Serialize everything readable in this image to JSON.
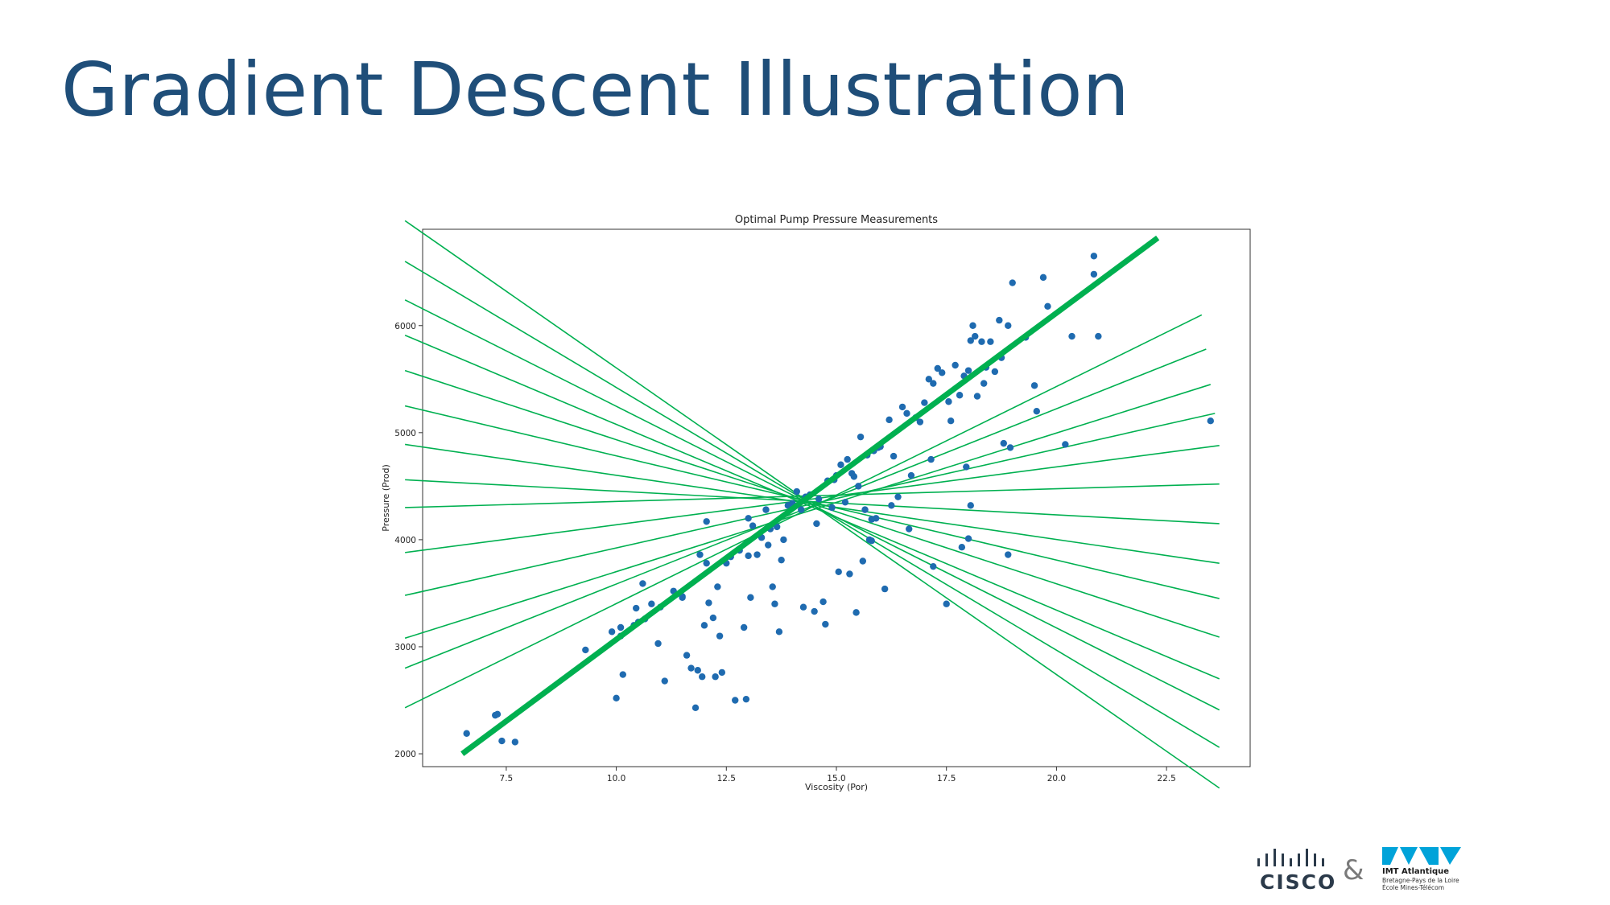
{
  "slide": {
    "title": "Gradient Descent Illustration"
  },
  "logos": {
    "cisco_text": "CISCO",
    "ampersand": "&",
    "imt_name": "IMT Atlantique",
    "imt_subtitle_1": "Bretagne-Pays de la Loire",
    "imt_subtitle_2": "École Mines-Télécom",
    "cisco_color": "#2b3a4a",
    "imt_color": "#00a3d9"
  },
  "chart_data": {
    "type": "scatter",
    "title": "Optimal Pump Pressure Measurements",
    "xlabel": "Viscosity (Por)",
    "ylabel": "Pressure (Prod)",
    "xlim": [
      5.6,
      24.4
    ],
    "ylim": [
      1880,
      6900
    ],
    "xticks": [
      "7.5",
      "10.0",
      "12.5",
      "15.0",
      "17.5",
      "20.0",
      "22.5"
    ],
    "xtick_values": [
      7.5,
      10.0,
      12.5,
      15.0,
      17.5,
      20.0,
      22.5
    ],
    "yticks": [
      "2000",
      "3000",
      "4000",
      "5000",
      "6000"
    ],
    "ytick_values": [
      2000,
      3000,
      4000,
      5000,
      6000
    ],
    "grid": false,
    "point_color": "#1f6bb0",
    "line_color": "#00b050",
    "points": [
      [
        6.6,
        2190
      ],
      [
        7.3,
        2370
      ],
      [
        7.25,
        2360
      ],
      [
        7.4,
        2120
      ],
      [
        7.7,
        2110
      ],
      [
        9.3,
        2970
      ],
      [
        9.9,
        3140
      ],
      [
        10.0,
        2520
      ],
      [
        10.1,
        3180
      ],
      [
        10.1,
        3100
      ],
      [
        10.15,
        2740
      ],
      [
        10.4,
        3200
      ],
      [
        10.45,
        3360
      ],
      [
        10.5,
        3230
      ],
      [
        10.6,
        3590
      ],
      [
        10.65,
        3260
      ],
      [
        10.8,
        3400
      ],
      [
        10.95,
        3030
      ],
      [
        11.0,
        3370
      ],
      [
        11.1,
        2680
      ],
      [
        11.3,
        3520
      ],
      [
        11.5,
        3470
      ],
      [
        11.6,
        2920
      ],
      [
        11.7,
        2800
      ],
      [
        11.8,
        2430
      ],
      [
        11.85,
        2780
      ],
      [
        11.9,
        3860
      ],
      [
        11.95,
        2720
      ],
      [
        12.0,
        3200
      ],
      [
        12.05,
        3780
      ],
      [
        12.1,
        3410
      ],
      [
        12.2,
        3270
      ],
      [
        12.25,
        2720
      ],
      [
        12.3,
        3560
      ],
      [
        12.35,
        3100
      ],
      [
        12.4,
        2760
      ],
      [
        12.5,
        3780
      ],
      [
        12.6,
        3840
      ],
      [
        12.7,
        2500
      ],
      [
        12.8,
        3900
      ],
      [
        12.9,
        3180
      ],
      [
        12.95,
        2510
      ],
      [
        13.0,
        4200
      ],
      [
        13.05,
        3460
      ],
      [
        13.1,
        4130
      ],
      [
        13.2,
        3860
      ],
      [
        13.3,
        4020
      ],
      [
        13.4,
        4280
      ],
      [
        13.45,
        3950
      ],
      [
        13.5,
        4100
      ],
      [
        13.55,
        3560
      ],
      [
        13.6,
        3400
      ],
      [
        13.65,
        4120
      ],
      [
        13.7,
        3140
      ],
      [
        13.75,
        3810
      ],
      [
        13.8,
        4000
      ],
      [
        13.9,
        4320
      ],
      [
        14.0,
        4340
      ],
      [
        14.1,
        4450
      ],
      [
        14.2,
        4280
      ],
      [
        14.25,
        3370
      ],
      [
        14.3,
        4400
      ],
      [
        14.4,
        4420
      ],
      [
        14.5,
        3330
      ],
      [
        14.55,
        4150
      ],
      [
        14.6,
        4380
      ],
      [
        14.7,
        3420
      ],
      [
        14.75,
        3210
      ],
      [
        14.8,
        4550
      ],
      [
        14.9,
        4300
      ],
      [
        14.95,
        4560
      ],
      [
        15.0,
        4600
      ],
      [
        15.05,
        3700
      ],
      [
        15.1,
        4700
      ],
      [
        15.2,
        4350
      ],
      [
        15.25,
        4750
      ],
      [
        15.3,
        3680
      ],
      [
        15.35,
        4620
      ],
      [
        15.4,
        4590
      ],
      [
        15.45,
        3320
      ],
      [
        15.5,
        4500
      ],
      [
        15.55,
        4960
      ],
      [
        15.6,
        3800
      ],
      [
        15.65,
        4280
      ],
      [
        15.7,
        4790
      ],
      [
        15.75,
        4000
      ],
      [
        15.8,
        4190
      ],
      [
        15.85,
        4830
      ],
      [
        15.9,
        4200
      ],
      [
        15.95,
        4860
      ],
      [
        16.0,
        4870
      ],
      [
        16.1,
        3540
      ],
      [
        16.2,
        5120
      ],
      [
        16.25,
        4320
      ],
      [
        16.3,
        4780
      ],
      [
        16.4,
        4400
      ],
      [
        16.5,
        5240
      ],
      [
        16.6,
        5180
      ],
      [
        16.65,
        4100
      ],
      [
        16.7,
        4600
      ],
      [
        16.8,
        5140
      ],
      [
        16.9,
        5100
      ],
      [
        17.0,
        5280
      ],
      [
        17.1,
        5500
      ],
      [
        17.15,
        4750
      ],
      [
        17.2,
        5460
      ],
      [
        17.3,
        5600
      ],
      [
        17.4,
        5560
      ],
      [
        17.5,
        3400
      ],
      [
        17.55,
        5290
      ],
      [
        17.6,
        5110
      ],
      [
        17.7,
        5630
      ],
      [
        17.8,
        5350
      ],
      [
        17.85,
        3930
      ],
      [
        17.9,
        5530
      ],
      [
        17.95,
        4680
      ],
      [
        18.0,
        5580
      ],
      [
        18.05,
        5860
      ],
      [
        18.1,
        6000
      ],
      [
        18.15,
        5900
      ],
      [
        18.2,
        5340
      ],
      [
        18.3,
        5850
      ],
      [
        18.35,
        5460
      ],
      [
        18.4,
        5610
      ],
      [
        18.5,
        5850
      ],
      [
        18.6,
        5570
      ],
      [
        18.7,
        6050
      ],
      [
        18.75,
        5700
      ],
      [
        18.8,
        4900
      ],
      [
        18.9,
        6000
      ],
      [
        18.95,
        4860
      ],
      [
        18.9,
        3860
      ],
      [
        19.0,
        6400
      ],
      [
        19.3,
        5890
      ],
      [
        19.5,
        5440
      ],
      [
        19.55,
        5200
      ],
      [
        19.7,
        6450
      ],
      [
        19.8,
        6180
      ],
      [
        20.2,
        4890
      ],
      [
        20.35,
        5900
      ],
      [
        20.85,
        6650
      ],
      [
        20.85,
        6480
      ],
      [
        20.95,
        5900
      ],
      [
        23.5,
        5110
      ],
      [
        18.05,
        4320
      ],
      [
        18.0,
        4010
      ],
      [
        17.2,
        3750
      ],
      [
        13.0,
        3850
      ],
      [
        12.05,
        4170
      ],
      [
        11.5,
        3460
      ],
      [
        15.8,
        3990
      ]
    ],
    "search_lines": [
      {
        "x": [
          5.2,
          23.7
        ],
        "y": [
          6980,
          1680
        ]
      },
      {
        "x": [
          5.2,
          23.7
        ],
        "y": [
          6600,
          2060
        ]
      },
      {
        "x": [
          5.2,
          23.7
        ],
        "y": [
          6240,
          2410
        ]
      },
      {
        "x": [
          5.2,
          23.7
        ],
        "y": [
          5910,
          2700
        ]
      },
      {
        "x": [
          5.2,
          23.7
        ],
        "y": [
          5580,
          3090
        ]
      },
      {
        "x": [
          5.2,
          23.7
        ],
        "y": [
          5250,
          3450
        ]
      },
      {
        "x": [
          5.2,
          23.7
        ],
        "y": [
          4890,
          3780
        ]
      },
      {
        "x": [
          5.2,
          23.7
        ],
        "y": [
          4560,
          4150
        ]
      },
      {
        "x": [
          5.2,
          23.7
        ],
        "y": [
          4300,
          4520
        ]
      },
      {
        "x": [
          5.2,
          23.7
        ],
        "y": [
          3880,
          4880
        ]
      },
      {
        "x": [
          5.2,
          23.6
        ],
        "y": [
          3480,
          5180
        ]
      },
      {
        "x": [
          5.2,
          23.5
        ],
        "y": [
          3080,
          5450
        ]
      },
      {
        "x": [
          5.2,
          23.4
        ],
        "y": [
          2800,
          5780
        ]
      },
      {
        "x": [
          5.2,
          23.3
        ],
        "y": [
          2430,
          6100
        ]
      }
    ],
    "best_fit_line": {
      "x": [
        6.5,
        22.3
      ],
      "y": [
        2000,
        6820
      ]
    }
  }
}
